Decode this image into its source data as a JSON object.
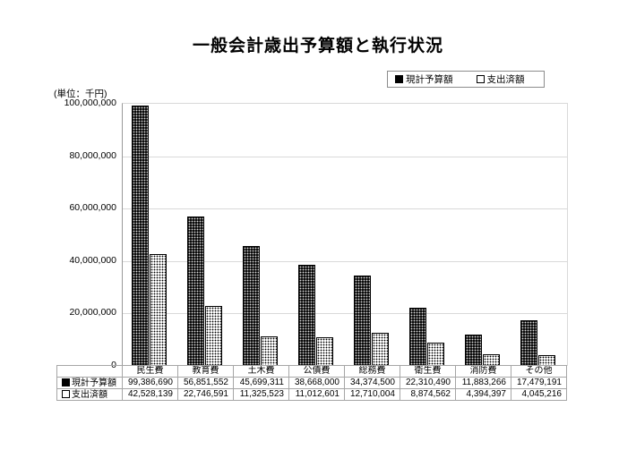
{
  "title": "一般会計歳出予算額と執行状況",
  "unit_label": "(単位：千円)",
  "legend": [
    {
      "label": "現計予算額",
      "marker": "filled-square"
    },
    {
      "label": "支出済額",
      "marker": "open-square"
    }
  ],
  "chart_data": {
    "type": "bar",
    "title": "一般会計歳出予算額と執行状況",
    "categories": [
      "民生費",
      "教育費",
      "土木費",
      "公債費",
      "総務費",
      "衛生費",
      "消防費",
      "その他"
    ],
    "series": [
      {
        "name": "現計予算額",
        "marker": "filled-square",
        "values": [
          99386690,
          56851552,
          45699311,
          38668000,
          34374500,
          22310490,
          11883266,
          17479191
        ]
      },
      {
        "name": "支出済額",
        "marker": "open-square",
        "values": [
          42528139,
          22746591,
          11325523,
          11012601,
          12710004,
          8874562,
          4394397,
          4045216
        ]
      }
    ],
    "xlabel": "",
    "ylabel": "(単位：千円)",
    "ylim": [
      0,
      100000000
    ],
    "ytick_interval": 20000000,
    "ytick_labels": [
      "0",
      "20,000,000",
      "40,000,000",
      "60,000,000",
      "80,000,000",
      "100,000,000"
    ],
    "grid": true,
    "legend_position": "top-right",
    "data_table_below": true
  },
  "colors": {
    "series1_fill": "#000000",
    "series2_fill": "#ffffff",
    "bar_border": "#000000",
    "gridline": "#d9d9d9",
    "axis": "#9a9a9a",
    "table_border": "#a6a6a6",
    "text": "#000000",
    "background": "#ffffff"
  }
}
